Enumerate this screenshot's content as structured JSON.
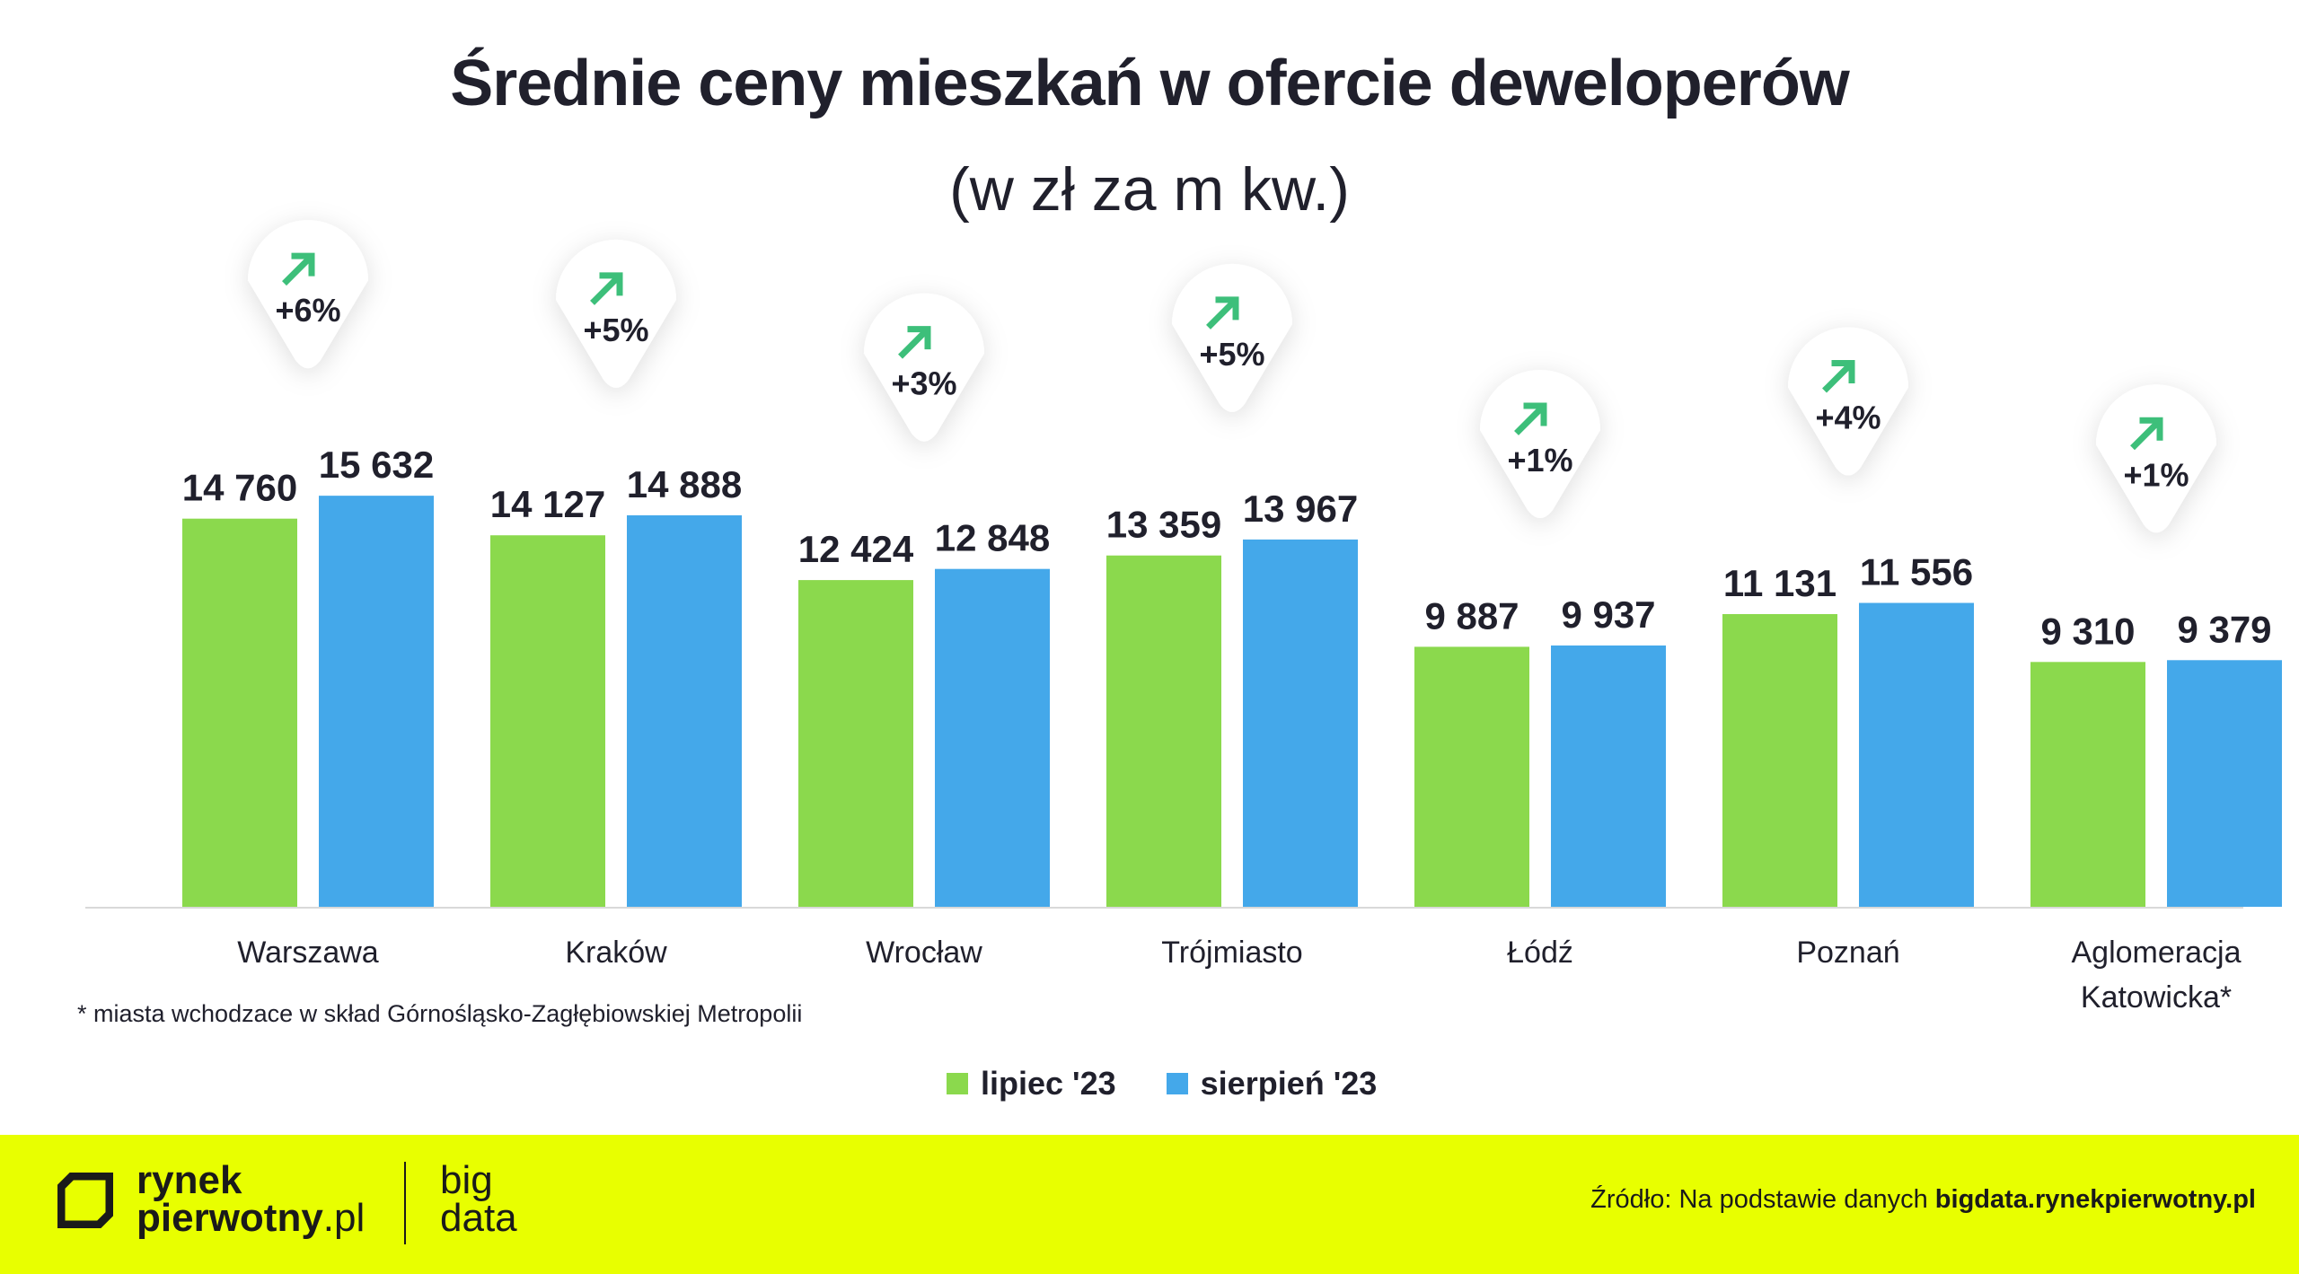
{
  "chart_data": {
    "type": "bar",
    "title": "Średnie ceny mieszkań w ofercie deweloperów",
    "subtitle": "(w zł za m kw.)",
    "categories": [
      "Warszawa",
      "Kraków",
      "Wrocław",
      "Trójmiasto",
      "Łódź",
      "Poznań",
      "Aglomeracja Katowicka*"
    ],
    "series": [
      {
        "name": "lipiec '23",
        "color": "#8bd94d",
        "values": [
          14760,
          14127,
          12424,
          13359,
          9887,
          11131,
          9310
        ],
        "labels": [
          "14 760",
          "14 127",
          "12 424",
          "13 359",
          "9 887",
          "11 131",
          "9 310"
        ]
      },
      {
        "name": "sierpień '23",
        "color": "#44a8ea",
        "values": [
          15632,
          14888,
          12848,
          13967,
          9937,
          11556,
          9379
        ],
        "labels": [
          "15 632",
          "14 888",
          "12 848",
          "13 967",
          "9 937",
          "11 556",
          "9 379"
        ]
      }
    ],
    "changes": [
      "+6%",
      "+5%",
      "+3%",
      "+5%",
      "+1%",
      "+4%",
      "+1%"
    ],
    "change_color": "#3dbf7a",
    "ylim": [
      0,
      16000
    ],
    "grid": false,
    "legend": "bottom-center"
  },
  "footnote": "* miasta wchodzace w skład Górnośląsko-Zagłębiowskiej Metropolii",
  "footer": {
    "background": "#e8ff00",
    "logo_line1": "rynek",
    "logo_line2": "pierwotny",
    "logo_suffix": ".pl",
    "bigdata_line1": "big",
    "bigdata_line2": "data",
    "source_prefix": "Źródło: Na podstawie danych ",
    "source_link": "bigdata.rynekpierwotny.pl"
  }
}
